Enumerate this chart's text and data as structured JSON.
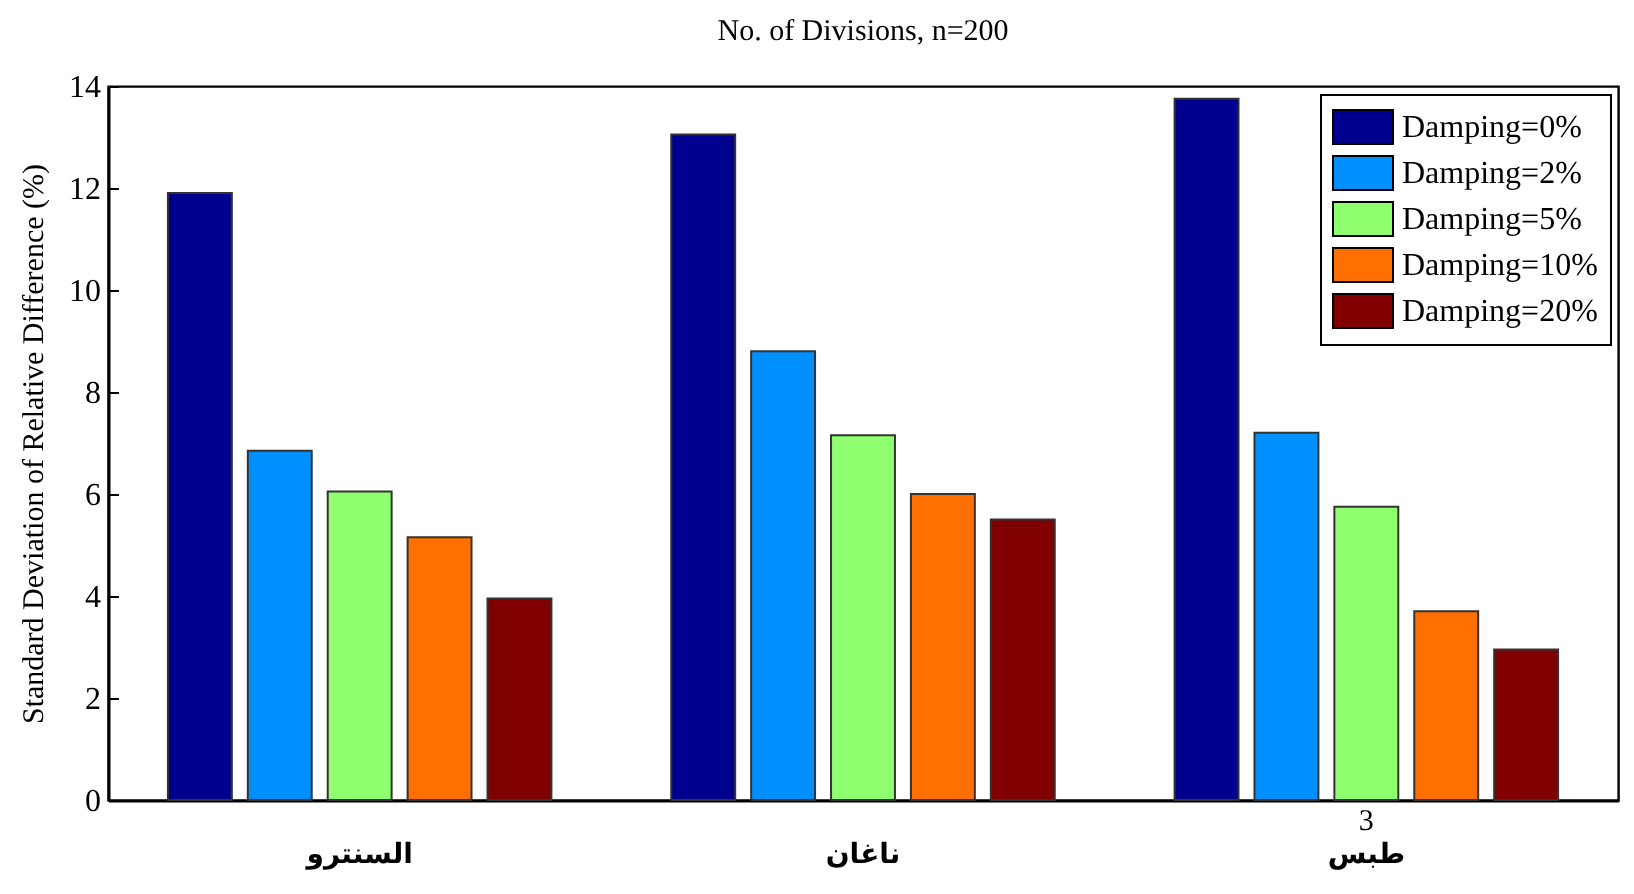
{
  "chart_data": {
    "type": "bar",
    "title": "No. of Divisions, n=200",
    "ylabel": "Standard Deviation of Relative Difference (%)",
    "categories": [
      "السنترو",
      "ناغان",
      "طبس"
    ],
    "series": [
      {
        "name": "Damping=0%",
        "color": "#00008f",
        "values": [
          11.9,
          13.05,
          13.75
        ]
      },
      {
        "name": "Damping=2%",
        "color": "#008fff",
        "values": [
          6.85,
          8.8,
          7.2
        ]
      },
      {
        "name": "Damping=5%",
        "color": "#8fff70",
        "values": [
          6.05,
          7.15,
          5.75
        ]
      },
      {
        "name": "Damping=10%",
        "color": "#ff7000",
        "values": [
          5.15,
          6.0,
          3.7
        ]
      },
      {
        "name": "Damping=20%",
        "color": "#800000",
        "values": [
          3.95,
          5.5,
          2.95
        ]
      }
    ],
    "ylim": [
      0,
      14
    ],
    "yticks": [
      0,
      2,
      4,
      6,
      8,
      10,
      12,
      14
    ],
    "legend": "top right",
    "annotations": [
      "3"
    ]
  }
}
